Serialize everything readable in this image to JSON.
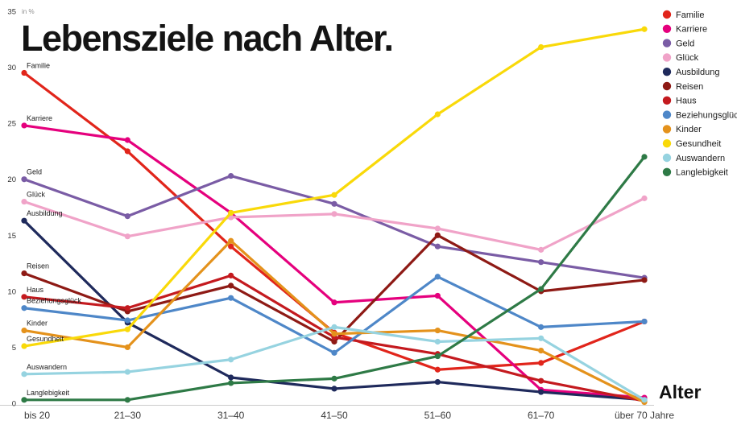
{
  "title": "Lebensziele nach Alter.",
  "xlabel": "Alter",
  "chart_data": {
    "type": "line",
    "title": "Lebensziele nach Alter.",
    "unit_label": "in %",
    "x_axis_title": "Alter",
    "categories": [
      "bis 20",
      "21–30",
      "31–40",
      "41–50",
      "51–60",
      "61–70",
      "über 70 Jahre"
    ],
    "y_ticks": [
      0,
      5,
      10,
      15,
      20,
      25,
      30,
      35
    ],
    "ylim": [
      0,
      35
    ],
    "grid": false,
    "legend_position": "top-right",
    "series": [
      {
        "name": "Familie",
        "color": "#e1251b",
        "values": [
          29.5,
          22.5,
          14.0,
          6.3,
          3.0,
          3.6,
          7.3
        ]
      },
      {
        "name": "Karriere",
        "color": "#e5007d",
        "values": [
          24.8,
          23.5,
          17.0,
          9.0,
          9.6,
          1.2,
          0.5
        ]
      },
      {
        "name": "Geld",
        "color": "#7a5ca5",
        "values": [
          20.0,
          16.7,
          20.3,
          17.8,
          14.0,
          12.6,
          11.2
        ]
      },
      {
        "name": "Glück",
        "color": "#f0a3c8",
        "values": [
          18.0,
          14.9,
          16.6,
          16.9,
          15.6,
          13.7,
          18.3
        ]
      },
      {
        "name": "Ausbildung",
        "color": "#1f2a5c",
        "values": [
          16.3,
          7.2,
          2.3,
          1.3,
          1.9,
          1.0,
          0.3
        ]
      },
      {
        "name": "Reisen",
        "color": "#8e1a15",
        "values": [
          11.6,
          8.2,
          10.5,
          5.5,
          15.0,
          10.0,
          11.0
        ]
      },
      {
        "name": "Haus",
        "color": "#c41a1f",
        "values": [
          9.5,
          8.5,
          11.4,
          5.9,
          4.4,
          2.0,
          0.2
        ]
      },
      {
        "name": "Beziehungsglück",
        "color": "#4e87c8",
        "values": [
          8.5,
          7.4,
          9.4,
          4.5,
          11.3,
          6.8,
          7.3
        ]
      },
      {
        "name": "Kinder",
        "color": "#e4921c",
        "values": [
          6.5,
          5.0,
          14.5,
          6.2,
          6.5,
          4.7,
          0.1
        ]
      },
      {
        "name": "Gesundheit",
        "color": "#f9d909",
        "values": [
          5.1,
          6.6,
          17.0,
          18.6,
          25.8,
          31.8,
          33.4
        ]
      },
      {
        "name": "Auswandern",
        "color": "#96d3e0",
        "values": [
          2.6,
          2.8,
          3.9,
          6.8,
          5.5,
          5.8,
          0.3
        ]
      },
      {
        "name": "Langlebigkeit",
        "color": "#2e7a46",
        "values": [
          0.3,
          0.3,
          1.8,
          2.2,
          4.2,
          10.2,
          22.0
        ]
      }
    ]
  }
}
